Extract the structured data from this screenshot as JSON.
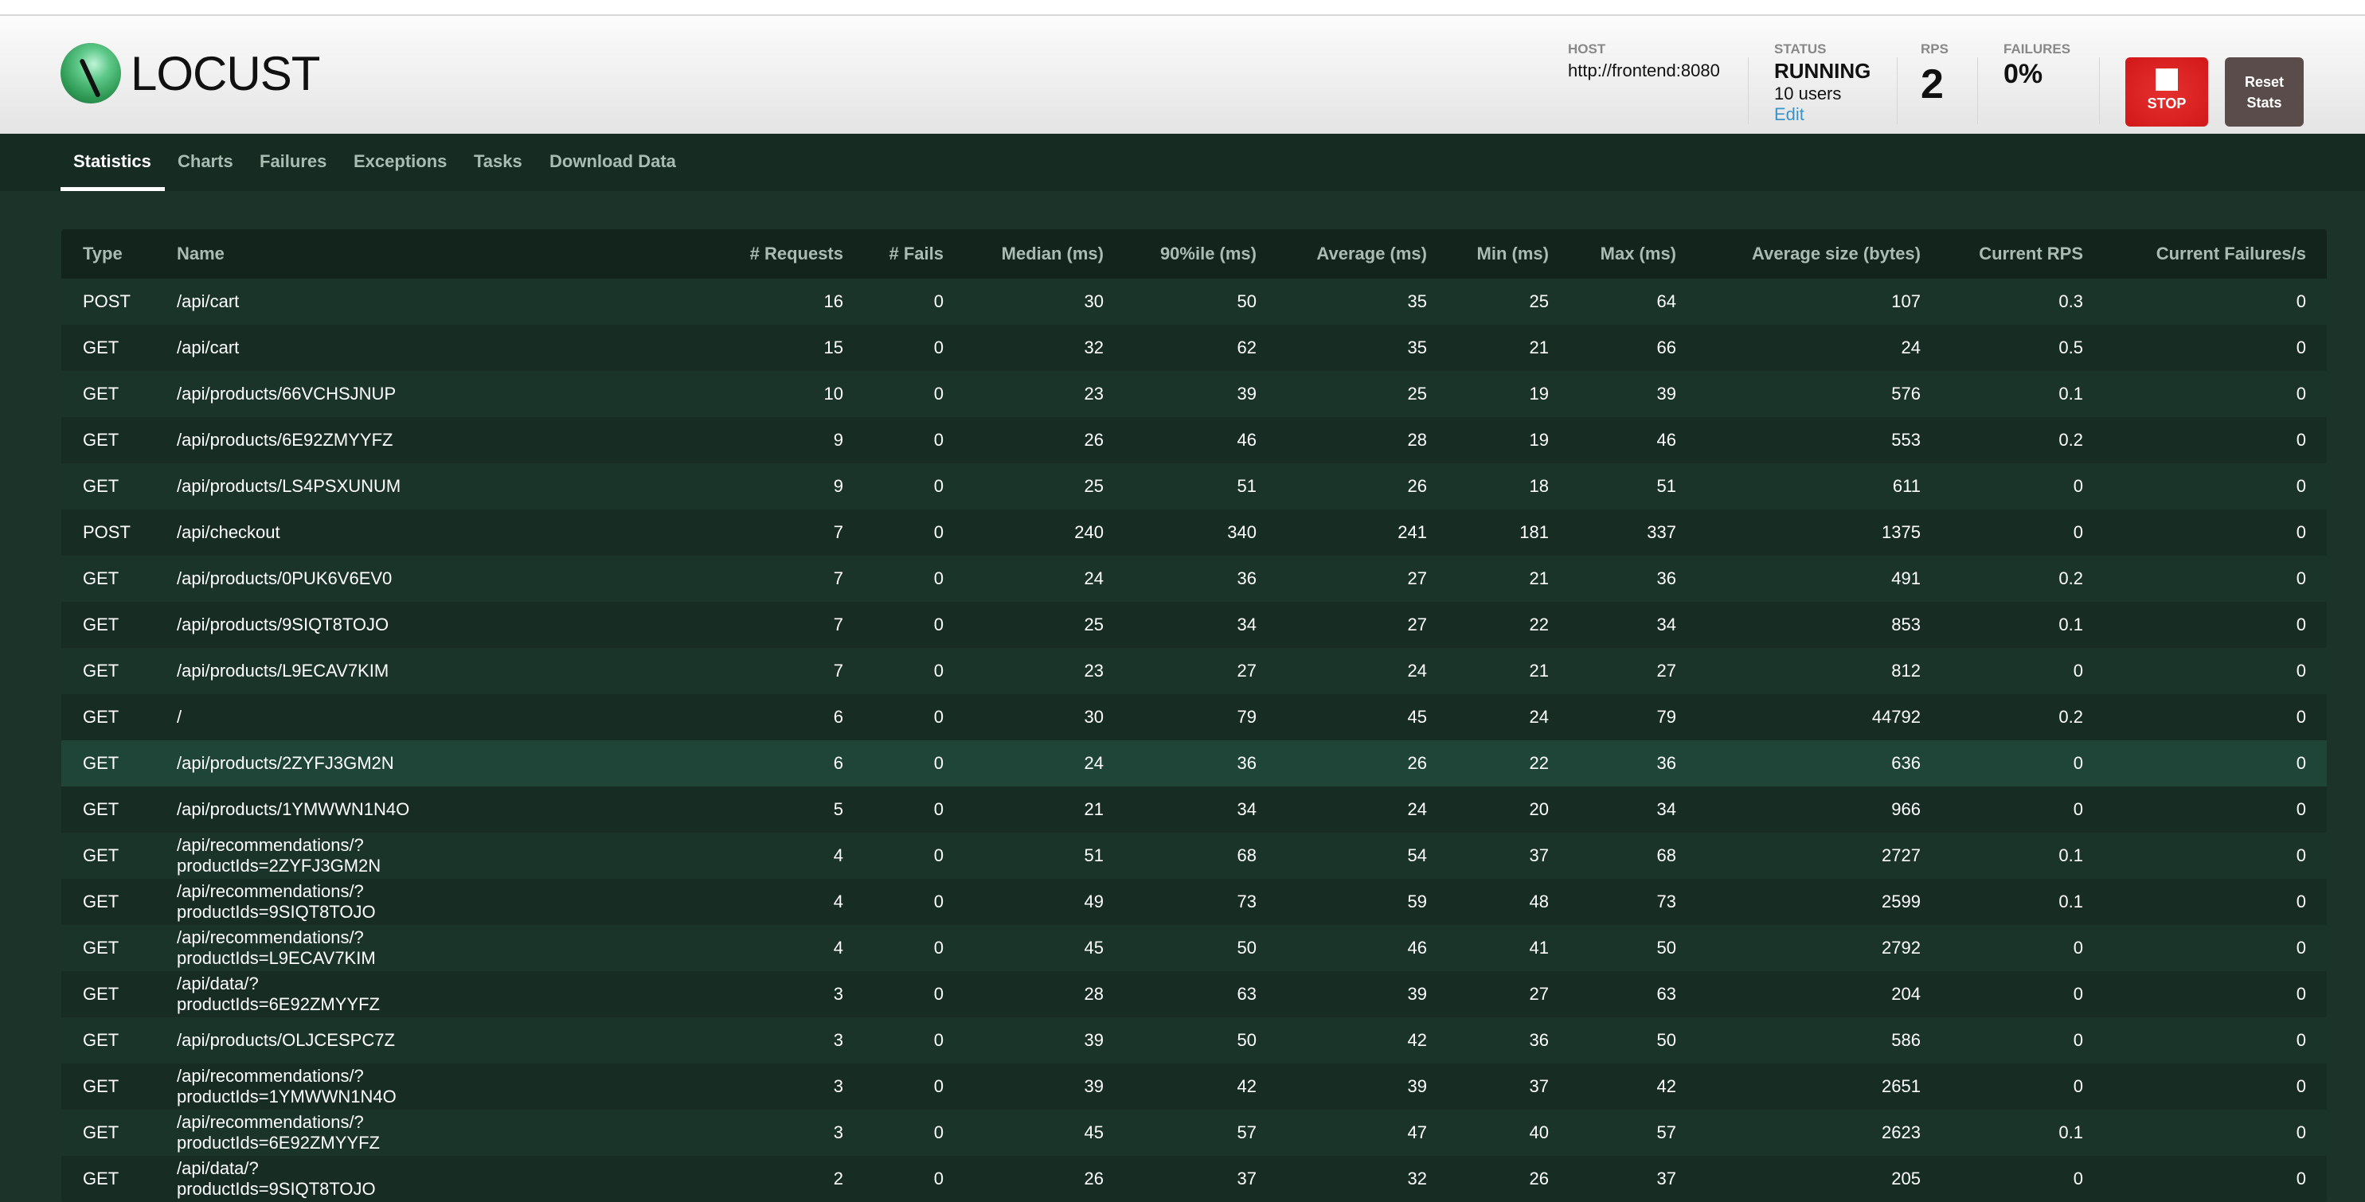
{
  "header": {
    "logo_text": "LOCUST",
    "host_label": "HOST",
    "host_value": "http://frontend:8080",
    "status_label": "STATUS",
    "status_value": "RUNNING",
    "users": "10 users",
    "edit_label": "Edit",
    "rps_label": "RPS",
    "rps_value": "2",
    "failures_label": "FAILURES",
    "failures_value": "0%",
    "stop_label": "STOP",
    "reset_label_line1": "Reset",
    "reset_label_line2": "Stats",
    "stop_color": "#d81b1b",
    "reset_color": "#5a4c4a"
  },
  "tabs": [
    {
      "label": "Statistics",
      "active": true
    },
    {
      "label": "Charts"
    },
    {
      "label": "Failures"
    },
    {
      "label": "Exceptions"
    },
    {
      "label": "Tasks"
    },
    {
      "label": "Download Data"
    }
  ],
  "table": {
    "columns": [
      "Type",
      "Name",
      "# Requests",
      "# Fails",
      "Median (ms)",
      "90%ile (ms)",
      "Average (ms)",
      "Min (ms)",
      "Max (ms)",
      "Average size (bytes)",
      "Current RPS",
      "Current Failures/s"
    ],
    "hovered_row": 10,
    "rows": [
      [
        "POST",
        "/api/cart",
        "16",
        "0",
        "30",
        "50",
        "35",
        "25",
        "64",
        "107",
        "0.3",
        "0"
      ],
      [
        "GET",
        "/api/cart",
        "15",
        "0",
        "32",
        "62",
        "35",
        "21",
        "66",
        "24",
        "0.5",
        "0"
      ],
      [
        "GET",
        "/api/products/66VCHSJNUP",
        "10",
        "0",
        "23",
        "39",
        "25",
        "19",
        "39",
        "576",
        "0.1",
        "0"
      ],
      [
        "GET",
        "/api/products/6E92ZMYYFZ",
        "9",
        "0",
        "26",
        "46",
        "28",
        "19",
        "46",
        "553",
        "0.2",
        "0"
      ],
      [
        "GET",
        "/api/products/LS4PSXUNUM",
        "9",
        "0",
        "25",
        "51",
        "26",
        "18",
        "51",
        "611",
        "0",
        "0"
      ],
      [
        "POST",
        "/api/checkout",
        "7",
        "0",
        "240",
        "340",
        "241",
        "181",
        "337",
        "1375",
        "0",
        "0"
      ],
      [
        "GET",
        "/api/products/0PUK6V6EV0",
        "7",
        "0",
        "24",
        "36",
        "27",
        "21",
        "36",
        "491",
        "0.2",
        "0"
      ],
      [
        "GET",
        "/api/products/9SIQT8TOJO",
        "7",
        "0",
        "25",
        "34",
        "27",
        "22",
        "34",
        "853",
        "0.1",
        "0"
      ],
      [
        "GET",
        "/api/products/L9ECAV7KIM",
        "7",
        "0",
        "23",
        "27",
        "24",
        "21",
        "27",
        "812",
        "0",
        "0"
      ],
      [
        "GET",
        "/",
        "6",
        "0",
        "30",
        "79",
        "45",
        "24",
        "79",
        "44792",
        "0.2",
        "0"
      ],
      [
        "GET",
        "/api/products/2ZYFJ3GM2N",
        "6",
        "0",
        "24",
        "36",
        "26",
        "22",
        "36",
        "636",
        "0",
        "0"
      ],
      [
        "GET",
        "/api/products/1YMWWN1N4O",
        "5",
        "0",
        "21",
        "34",
        "24",
        "20",
        "34",
        "966",
        "0",
        "0"
      ],
      [
        "GET",
        "/api/recommendations/?productIds=2ZYFJ3GM2N",
        "4",
        "0",
        "51",
        "68",
        "54",
        "37",
        "68",
        "2727",
        "0.1",
        "0"
      ],
      [
        "GET",
        "/api/recommendations/?productIds=9SIQT8TOJO",
        "4",
        "0",
        "49",
        "73",
        "59",
        "48",
        "73",
        "2599",
        "0.1",
        "0"
      ],
      [
        "GET",
        "/api/recommendations/?productIds=L9ECAV7KIM",
        "4",
        "0",
        "45",
        "50",
        "46",
        "41",
        "50",
        "2792",
        "0",
        "0"
      ],
      [
        "GET",
        "/api/data/?productIds=6E92ZMYYFZ",
        "3",
        "0",
        "28",
        "63",
        "39",
        "27",
        "63",
        "204",
        "0",
        "0"
      ],
      [
        "GET",
        "/api/products/OLJCESPC7Z",
        "3",
        "0",
        "39",
        "50",
        "42",
        "36",
        "50",
        "586",
        "0",
        "0"
      ],
      [
        "GET",
        "/api/recommendations/?productIds=1YMWWN1N4O",
        "3",
        "0",
        "39",
        "42",
        "39",
        "37",
        "42",
        "2651",
        "0",
        "0"
      ],
      [
        "GET",
        "/api/recommendations/?productIds=6E92ZMYYFZ",
        "3",
        "0",
        "45",
        "57",
        "47",
        "40",
        "57",
        "2623",
        "0.1",
        "0"
      ],
      [
        "GET",
        "/api/data/?productIds=9SIQT8TOJO",
        "2",
        "0",
        "26",
        "37",
        "32",
        "26",
        "37",
        "205",
        "0",
        "0"
      ]
    ]
  }
}
